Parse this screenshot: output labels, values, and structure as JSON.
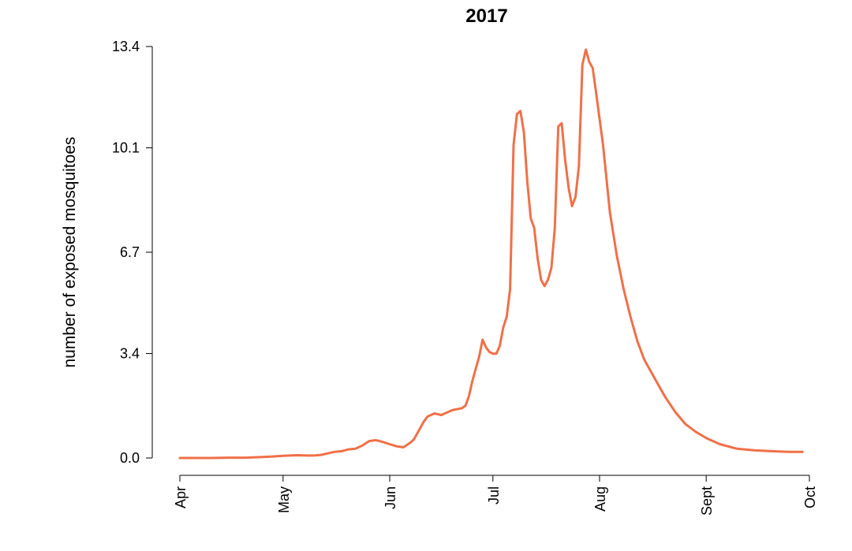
{
  "chart_data": {
    "type": "line",
    "title": "2017",
    "xlabel": "",
    "ylabel": "number of exposed mosquitoes",
    "x_tick_labels": [
      "Apr",
      "May",
      "Jun",
      "Jul",
      "Aug",
      "Sept",
      "Oct"
    ],
    "y_ticks": [
      0.0,
      3.4,
      6.7,
      10.1,
      13.4
    ],
    "y_tick_labels": [
      "0.0",
      "3.4",
      "6.7",
      "10.1",
      "13.4"
    ],
    "xlim": [
      "2017-04-01",
      "2017-10-01"
    ],
    "ylim": [
      0.0,
      13.4
    ],
    "grid": false,
    "line_color": "#F07048",
    "series": [
      {
        "x": [
          "2017-04-01",
          "2017-04-05",
          "2017-04-10",
          "2017-04-15",
          "2017-04-20",
          "2017-04-25",
          "2017-04-28",
          "2017-05-01",
          "2017-05-05",
          "2017-05-08",
          "2017-05-10",
          "2017-05-12",
          "2017-05-14",
          "2017-05-16",
          "2017-05-18",
          "2017-05-20",
          "2017-05-22",
          "2017-05-24",
          "2017-05-26",
          "2017-05-28",
          "2017-05-30",
          "2017-06-01",
          "2017-06-03",
          "2017-06-05",
          "2017-06-07",
          "2017-06-08",
          "2017-06-09",
          "2017-06-10",
          "2017-06-11",
          "2017-06-12",
          "2017-06-13",
          "2017-06-14",
          "2017-06-16",
          "2017-06-17",
          "2017-06-18",
          "2017-06-19",
          "2017-06-20",
          "2017-06-21",
          "2017-06-22",
          "2017-06-23",
          "2017-06-24",
          "2017-06-25",
          "2017-06-26",
          "2017-06-27",
          "2017-06-28",
          "2017-06-29",
          "2017-06-30",
          "2017-07-01",
          "2017-07-02",
          "2017-07-03",
          "2017-07-04",
          "2017-07-05",
          "2017-07-06",
          "2017-07-07",
          "2017-07-08",
          "2017-07-09",
          "2017-07-10",
          "2017-07-11",
          "2017-07-12",
          "2017-07-13",
          "2017-07-14",
          "2017-07-15",
          "2017-07-16",
          "2017-07-17",
          "2017-07-18",
          "2017-07-19",
          "2017-07-20",
          "2017-07-21",
          "2017-07-22",
          "2017-07-23",
          "2017-07-24",
          "2017-07-25",
          "2017-07-26",
          "2017-07-27",
          "2017-07-28",
          "2017-07-29",
          "2017-07-30",
          "2017-07-31",
          "2017-08-02",
          "2017-08-04",
          "2017-08-06",
          "2017-08-08",
          "2017-08-10",
          "2017-08-12",
          "2017-08-14",
          "2017-08-16",
          "2017-08-18",
          "2017-08-20",
          "2017-08-23",
          "2017-08-26",
          "2017-08-29",
          "2017-09-01",
          "2017-09-05",
          "2017-09-10",
          "2017-09-15",
          "2017-09-20",
          "2017-09-25",
          "2017-09-29"
        ],
        "y": [
          0.0,
          0.0,
          0.0,
          0.01,
          0.01,
          0.03,
          0.05,
          0.07,
          0.09,
          0.08,
          0.08,
          0.1,
          0.15,
          0.2,
          0.22,
          0.28,
          0.3,
          0.4,
          0.55,
          0.58,
          0.52,
          0.45,
          0.38,
          0.35,
          0.5,
          0.6,
          0.8,
          1.0,
          1.2,
          1.35,
          1.4,
          1.45,
          1.4,
          1.45,
          1.5,
          1.55,
          1.58,
          1.6,
          1.62,
          1.7,
          2.0,
          2.5,
          2.9,
          3.3,
          3.85,
          3.6,
          3.45,
          3.4,
          3.4,
          3.65,
          4.25,
          4.6,
          5.5,
          10.2,
          11.2,
          11.3,
          10.6,
          9.0,
          7.8,
          7.5,
          6.5,
          5.8,
          5.6,
          5.8,
          6.2,
          7.5,
          10.8,
          10.9,
          9.7,
          8.8,
          8.2,
          8.5,
          9.5,
          12.8,
          13.3,
          12.9,
          12.7,
          11.9,
          10.2,
          8.0,
          6.6,
          5.5,
          4.6,
          3.8,
          3.2,
          2.8,
          2.4,
          2.0,
          1.5,
          1.1,
          0.85,
          0.65,
          0.45,
          0.3,
          0.25,
          0.22,
          0.2,
          0.2
        ]
      }
    ]
  }
}
